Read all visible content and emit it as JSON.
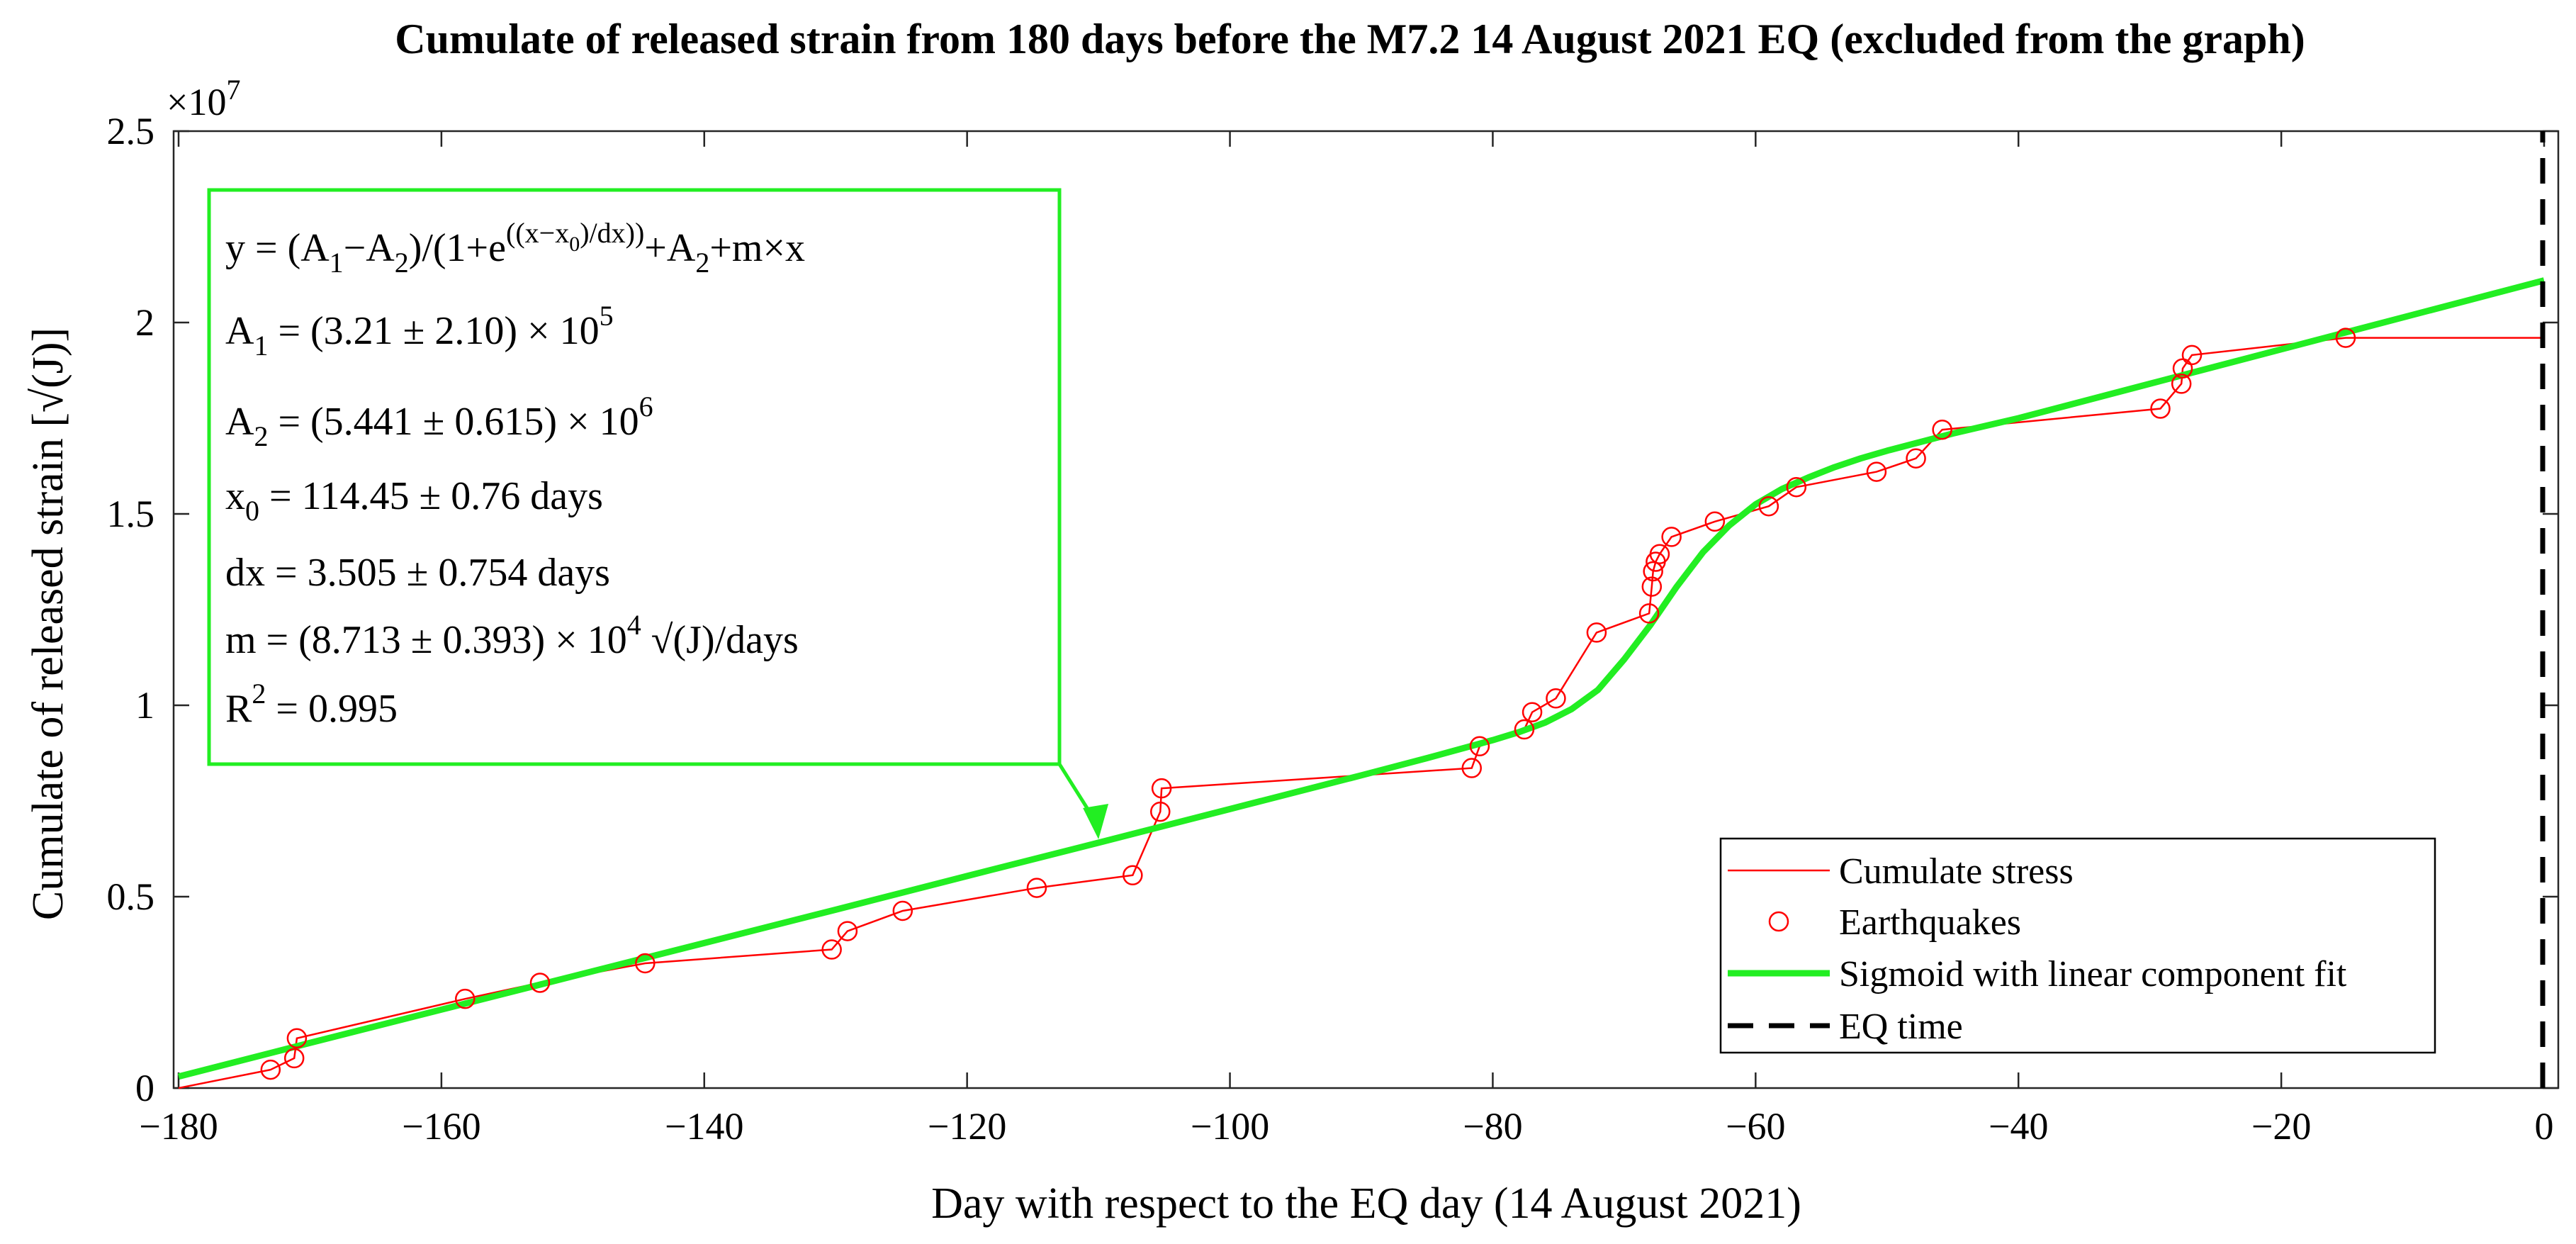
{
  "chart_data": {
    "type": "line",
    "title": "Cumulate of released strain from 180 days before the M7.2 14 August 2021 EQ (excluded from the graph)",
    "xlabel": "Day with respect to the EQ day (14 August 2021)",
    "ylabel": "Cumulate of released strain [√(J)]",
    "xlim": [
      -180,
      0
    ],
    "ylim": [
      0,
      2.5
    ],
    "y_exponent_label": "×10",
    "y_exponent": "7",
    "xticks": [
      -180,
      -160,
      -140,
      -120,
      -100,
      -80,
      -60,
      -40,
      -20,
      0
    ],
    "xtick_labels": [
      "−180",
      "−160",
      "−140",
      "−120",
      "−100",
      "−80",
      "−60",
      "−40",
      "−20",
      "0"
    ],
    "yticks": [
      0,
      0.5,
      1,
      1.5,
      2,
      2.5
    ],
    "ytick_labels": [
      "0",
      "0.5",
      "1",
      "1.5",
      "2",
      "2.5"
    ],
    "series": [
      {
        "name": "Cumulate stress",
        "style": "thin-line",
        "color": "#ff0000",
        "x": [
          -180,
          -173,
          -171.2,
          -171,
          -158.2,
          -152.5,
          -144.5,
          -130.3,
          -129.1,
          -124.9,
          -114.7,
          -107.4,
          -105.3,
          -105.2,
          -81.6,
          -81,
          -77.6,
          -77,
          -75.2,
          -72.1,
          -68.1,
          -67.9,
          -67.8,
          -67.6,
          -67.3,
          -66.4,
          -63.1,
          -59,
          -56.9,
          -50.8,
          -47.8,
          -45.8,
          -29.2,
          -27.6,
          -27.5,
          -26.8,
          -15.1,
          0
        ],
        "y": [
          0,
          0.048,
          0.078,
          0.13,
          0.233,
          0.275,
          0.326,
          0.362,
          0.41,
          0.463,
          0.523,
          0.556,
          0.722,
          0.783,
          0.836,
          0.893,
          0.937,
          0.982,
          1.018,
          1.19,
          1.24,
          1.31,
          1.35,
          1.375,
          1.395,
          1.44,
          1.48,
          1.52,
          1.57,
          1.61,
          1.645,
          1.72,
          1.775,
          1.84,
          1.88,
          1.915,
          1.96,
          1.96
        ]
      },
      {
        "name": "Earthquakes",
        "style": "markers",
        "color": "#ff0000",
        "x": [
          -173,
          -171.2,
          -171,
          -158.2,
          -152.5,
          -144.5,
          -130.3,
          -129.1,
          -124.9,
          -114.7,
          -107.4,
          -105.3,
          -105.2,
          -81.6,
          -81,
          -77.6,
          -77,
          -75.2,
          -72.1,
          -68.1,
          -67.9,
          -67.8,
          -67.6,
          -67.3,
          -66.4,
          -63.1,
          -59,
          -56.9,
          -50.8,
          -47.8,
          -45.8,
          -29.2,
          -27.6,
          -27.5,
          -26.8,
          -15.1
        ],
        "y": [
          0.048,
          0.078,
          0.13,
          0.233,
          0.275,
          0.326,
          0.362,
          0.41,
          0.463,
          0.523,
          0.556,
          0.722,
          0.783,
          0.836,
          0.893,
          0.937,
          0.982,
          1.018,
          1.19,
          1.24,
          1.31,
          1.35,
          1.375,
          1.395,
          1.44,
          1.48,
          1.52,
          1.57,
          1.61,
          1.645,
          1.72,
          1.775,
          1.84,
          1.88,
          1.915,
          1.96
        ]
      },
      {
        "name": "Sigmoid with linear component fit",
        "style": "thick-line",
        "color": "#22ee22",
        "x": [
          -180,
          -170,
          -160,
          -150,
          -140,
          -130,
          -120,
          -110,
          -100,
          -90,
          -85,
          -80,
          -78,
          -76,
          -74,
          -72,
          -70,
          -68,
          -66,
          -64,
          -62,
          -60,
          -58,
          -56,
          -54,
          -52,
          -50,
          -45,
          -40,
          -30,
          -20,
          -10,
          0
        ],
        "y": [
          0.03,
          0.118,
          0.205,
          0.292,
          0.379,
          0.466,
          0.554,
          0.641,
          0.729,
          0.817,
          0.862,
          0.909,
          0.93,
          0.955,
          0.99,
          1.04,
          1.12,
          1.21,
          1.31,
          1.4,
          1.47,
          1.525,
          1.565,
          1.595,
          1.622,
          1.645,
          1.665,
          1.71,
          1.75,
          1.84,
          1.93,
          2.02,
          2.11
        ]
      },
      {
        "name": "EQ time",
        "style": "dashed-vertical",
        "color": "#000000",
        "x": [
          0,
          0
        ],
        "y": [
          0,
          2.5
        ]
      }
    ],
    "annotation": {
      "lines": [
        {
          "main": "y = (A",
          "s1": "1",
          "m2": "−A",
          "s2": "2",
          "m3": ")/(1+e",
          "sup": "((x−x",
          "supsub": "0",
          "sup2": ")/dx))",
          "m4": "+A",
          "s3": "2",
          "m5": "+m×x"
        },
        {
          "pre": "A",
          "sub": "1",
          "post": " = (3.21 ± 2.10) × 10",
          "sup": "5"
        },
        {
          "pre": "A",
          "sub": "2",
          "post": " = (5.441 ± 0.615) × 10",
          "sup": "6"
        },
        {
          "pre": "x",
          "sub": "0",
          "post": " = 114.45 ± 0.76 days"
        },
        {
          "text": "dx = 3.505 ± 0.754 days"
        },
        {
          "pre": "m = (8.713 ± 0.393) × 10",
          "sup": "4",
          "post": " √(J)/days"
        },
        {
          "pre": "R",
          "sup": "2",
          "post": " = 0.995"
        }
      ],
      "arrow_target": {
        "x": -110,
        "y": 0.65
      }
    },
    "legend": {
      "placement": "bottom-right",
      "entries": [
        "Cumulate stress",
        "Earthquakes",
        "Sigmoid with linear component fit",
        "EQ time"
      ]
    }
  }
}
